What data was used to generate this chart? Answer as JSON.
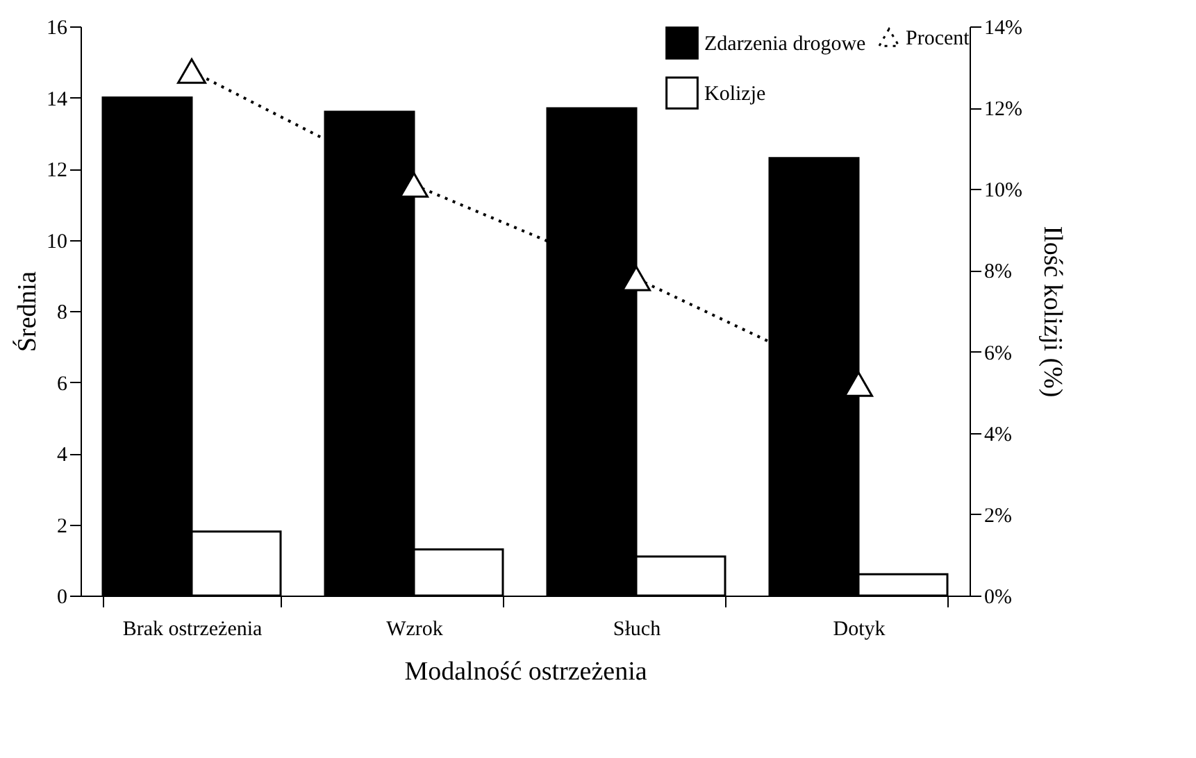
{
  "chart_data": {
    "type": "bar",
    "xlabel": "Modalność ostrzeżenia",
    "ylabel": "Średnia",
    "y2label": "Ilość kolizji (%)",
    "categories": [
      "Brak ostrzeżenia",
      "Wzrok",
      "Słuch",
      "Dotyk"
    ],
    "series": [
      {
        "name": "Zdarzenia drogowe",
        "color": "#000000",
        "values": [
          14.0,
          13.6,
          13.7,
          12.3
        ]
      },
      {
        "name": "Kolizje",
        "color": "#ffffff",
        "values": [
          1.8,
          1.3,
          1.1,
          0.6
        ]
      },
      {
        "name": "Procent",
        "type": "line",
        "axis": "y2",
        "color": "#000000",
        "marker": "triangle",
        "line_style": "dotted",
        "values": [
          12.9,
          10.1,
          7.8,
          5.2
        ]
      }
    ],
    "ylim": [
      0,
      16
    ],
    "yticks": [
      0,
      2,
      4,
      6,
      8,
      10,
      12,
      14,
      16
    ],
    "y2lim": [
      0,
      14
    ],
    "y2ticks": [
      {
        "value": 0,
        "label": "0%"
      },
      {
        "value": 2,
        "label": "2%"
      },
      {
        "value": 4,
        "label": "4%"
      },
      {
        "value": 6,
        "label": "6%"
      },
      {
        "value": 8,
        "label": "8%"
      },
      {
        "value": 10,
        "label": "10%"
      },
      {
        "value": 12,
        "label": "12%"
      },
      {
        "value": 14,
        "label": "14%"
      }
    ],
    "grid": false,
    "legend": "top right"
  }
}
